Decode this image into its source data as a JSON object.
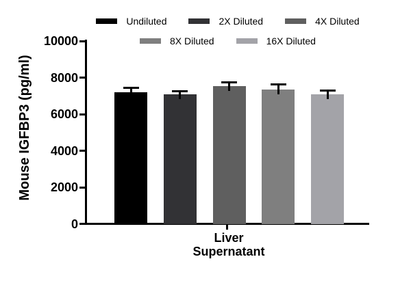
{
  "chart_data": {
    "type": "bar",
    "title": "",
    "ylabel": "Mouse IGFBP3 (pg/ml)",
    "xlabel": "",
    "categories": [
      "Liver Supernatant"
    ],
    "x_tick_label_lines": [
      "Liver",
      "Supernatant"
    ],
    "ylim": [
      0,
      10000
    ],
    "y_ticks": [
      0,
      2000,
      4000,
      6000,
      8000,
      10000
    ],
    "grid": false,
    "legend_position": "top",
    "error_bars": "upper",
    "series": [
      {
        "name": "Undiluted",
        "values": [
          7190
        ],
        "errors": [
          250
        ],
        "color": "#000000"
      },
      {
        "name": "2X Diluted",
        "values": [
          7080
        ],
        "errors": [
          190
        ],
        "color": "#323235"
      },
      {
        "name": "4X Diluted",
        "values": [
          7550
        ],
        "errors": [
          180
        ],
        "color": "#5f5f5f"
      },
      {
        "name": "8X Diluted",
        "values": [
          7330
        ],
        "errors": [
          280
        ],
        "color": "#7f7f7f"
      },
      {
        "name": "16X Diluted",
        "values": [
          7070
        ],
        "errors": [
          225
        ],
        "color": "#a3a3a8"
      }
    ],
    "legend_rows": [
      [
        "Undiluted",
        "2X Diluted",
        "4X Diluted"
      ],
      [
        "8X Diluted",
        "16X Diluted"
      ]
    ]
  },
  "colors": {
    "axis": "#000000",
    "text": "#000000",
    "background": "#ffffff"
  }
}
